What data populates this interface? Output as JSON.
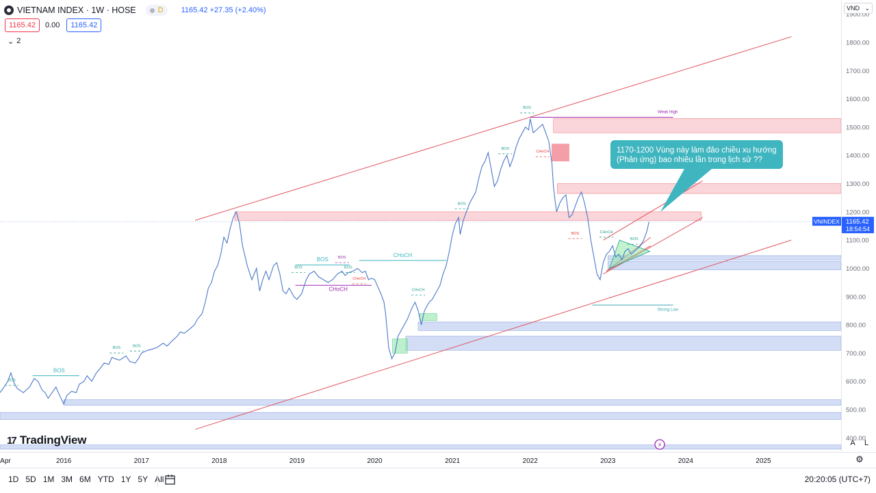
{
  "header": {
    "title": "VIETNAM INDEX · 1W · HOSE",
    "interval_badge": "D",
    "quote": "1165.42  +27.35 (+2.40%)",
    "bid": "1165.42",
    "spread": "0.00",
    "ask": "1165.42",
    "indicators_count": "2"
  },
  "currency": "VND",
  "brand": "TradingView",
  "scale_buttons": {
    "auto": "A",
    "log": "L"
  },
  "time_ranges": [
    "1D",
    "5D",
    "1M",
    "3M",
    "6M",
    "YTD",
    "1Y",
    "5Y",
    "All"
  ],
  "clock": "20:20:05 (UTC+7)",
  "colors": {
    "line": "#4a78c8",
    "zone_red": "#f5b5bb",
    "zone_blue": "#aec1ec",
    "zone_green": "#87e5a4",
    "channel": "#e0555f",
    "callout": "#3fb5bf"
  },
  "chart_data": {
    "type": "line",
    "symbol": "VNINDEX",
    "last_value": 1165.42,
    "last_label": "1165.42",
    "countdown": "18:54:54",
    "ylim": [
      350,
      1950
    ],
    "y_ticks": [
      400,
      500,
      600,
      700,
      800,
      900,
      1000,
      1100,
      1200,
      1300,
      1400,
      1500,
      1600,
      1700,
      1800,
      1900
    ],
    "y_tick_labels": [
      "400.00",
      "500.00",
      "600.00",
      "700.00",
      "800.00",
      "900.00",
      "1000.00",
      "1100.00",
      "1200.00",
      "1300.00",
      "1400.00",
      "1500.00",
      "1600.00",
      "1700.00",
      "1800.00",
      "1900.00"
    ],
    "x_ticks": [
      {
        "label": "Apr",
        "t": 2015.25
      },
      {
        "label": "2016",
        "t": 2016.0
      },
      {
        "label": "2017",
        "t": 2017.0
      },
      {
        "label": "2018",
        "t": 2018.0
      },
      {
        "label": "2019",
        "t": 2019.0
      },
      {
        "label": "2020",
        "t": 2020.0
      },
      {
        "label": "2021",
        "t": 2021.0
      },
      {
        "label": "2022",
        "t": 2022.0
      },
      {
        "label": "2023",
        "t": 2023.0
      },
      {
        "label": "2024",
        "t": 2024.0
      },
      {
        "label": "2025",
        "t": 2025.0
      }
    ],
    "xlim": [
      2015.18,
      2026.0
    ],
    "points": [
      [
        2015.18,
        560
      ],
      [
        2015.22,
        575
      ],
      [
        2015.28,
        600
      ],
      [
        2015.32,
        630
      ],
      [
        2015.36,
        595
      ],
      [
        2015.4,
        575
      ],
      [
        2015.48,
        560
      ],
      [
        2015.56,
        580
      ],
      [
        2015.62,
        610
      ],
      [
        2015.67,
        600
      ],
      [
        2015.72,
        570
      ],
      [
        2015.76,
        560
      ],
      [
        2015.8,
        540
      ],
      [
        2015.85,
        560
      ],
      [
        2015.9,
        580
      ],
      [
        2015.93,
        560
      ],
      [
        2016.0,
        520
      ],
      [
        2016.04,
        550
      ],
      [
        2016.1,
        565
      ],
      [
        2016.16,
        560
      ],
      [
        2016.2,
        590
      ],
      [
        2016.26,
        600
      ],
      [
        2016.3,
        620
      ],
      [
        2016.36,
        600
      ],
      [
        2016.42,
        630
      ],
      [
        2016.48,
        650
      ],
      [
        2016.52,
        665
      ],
      [
        2016.58,
        660
      ],
      [
        2016.62,
        685
      ],
      [
        2016.66,
        680
      ],
      [
        2016.72,
        675
      ],
      [
        2016.8,
        690
      ],
      [
        2016.85,
        670
      ],
      [
        2016.92,
        665
      ],
      [
        2016.96,
        680
      ],
      [
        2017.0,
        700
      ],
      [
        2017.08,
        710
      ],
      [
        2017.15,
        715
      ],
      [
        2017.2,
        720
      ],
      [
        2017.28,
        735
      ],
      [
        2017.33,
        725
      ],
      [
        2017.4,
        745
      ],
      [
        2017.46,
        760
      ],
      [
        2017.5,
        775
      ],
      [
        2017.55,
        770
      ],
      [
        2017.62,
        785
      ],
      [
        2017.68,
        800
      ],
      [
        2017.72,
        820
      ],
      [
        2017.78,
        840
      ],
      [
        2017.82,
        880
      ],
      [
        2017.86,
        930
      ],
      [
        2017.9,
        950
      ],
      [
        2017.94,
        990
      ],
      [
        2017.98,
        1010
      ],
      [
        2018.02,
        1050
      ],
      [
        2018.06,
        1110
      ],
      [
        2018.1,
        1090
      ],
      [
        2018.14,
        1140
      ],
      [
        2018.18,
        1180
      ],
      [
        2018.22,
        1200
      ],
      [
        2018.26,
        1160
      ],
      [
        2018.3,
        1080
      ],
      [
        2018.36,
        1010
      ],
      [
        2018.42,
        960
      ],
      [
        2018.48,
        1000
      ],
      [
        2018.52,
        920
      ],
      [
        2018.56,
        960
      ],
      [
        2018.6,
        990
      ],
      [
        2018.64,
        960
      ],
      [
        2018.7,
        1010
      ],
      [
        2018.74,
        1020
      ],
      [
        2018.78,
        980
      ],
      [
        2018.82,
        920
      ],
      [
        2018.86,
        910
      ],
      [
        2018.9,
        930
      ],
      [
        2018.96,
        900
      ],
      [
        2019.0,
        890
      ],
      [
        2019.06,
        910
      ],
      [
        2019.12,
        960
      ],
      [
        2019.16,
        980
      ],
      [
        2019.22,
        990
      ],
      [
        2019.28,
        970
      ],
      [
        2019.34,
        960
      ],
      [
        2019.4,
        950
      ],
      [
        2019.46,
        960
      ],
      [
        2019.52,
        980
      ],
      [
        2019.58,
        990
      ],
      [
        2019.62,
        975
      ],
      [
        2019.66,
        985
      ],
      [
        2019.72,
        990
      ],
      [
        2019.78,
        1000
      ],
      [
        2019.84,
        985
      ],
      [
        2019.88,
        990
      ],
      [
        2019.92,
        960
      ],
      [
        2019.96,
        965
      ],
      [
        2020.0,
        960
      ],
      [
        2020.04,
        935
      ],
      [
        2020.08,
        910
      ],
      [
        2020.12,
        880
      ],
      [
        2020.14,
        840
      ],
      [
        2020.16,
        780
      ],
      [
        2020.18,
        720
      ],
      [
        2020.22,
        680
      ],
      [
        2020.26,
        700
      ],
      [
        2020.3,
        760
      ],
      [
        2020.36,
        790
      ],
      [
        2020.42,
        820
      ],
      [
        2020.48,
        860
      ],
      [
        2020.52,
        880
      ],
      [
        2020.56,
        850
      ],
      [
        2020.6,
        800
      ],
      [
        2020.64,
        850
      ],
      [
        2020.7,
        880
      ],
      [
        2020.74,
        890
      ],
      [
        2020.8,
        920
      ],
      [
        2020.84,
        940
      ],
      [
        2020.88,
        980
      ],
      [
        2020.92,
        1010
      ],
      [
        2020.96,
        1060
      ],
      [
        2021.0,
        1120
      ],
      [
        2021.04,
        1160
      ],
      [
        2021.08,
        1180
      ],
      [
        2021.1,
        1120
      ],
      [
        2021.14,
        1170
      ],
      [
        2021.18,
        1200
      ],
      [
        2021.22,
        1230
      ],
      [
        2021.26,
        1250
      ],
      [
        2021.3,
        1270
      ],
      [
        2021.34,
        1320
      ],
      [
        2021.38,
        1360
      ],
      [
        2021.42,
        1380
      ],
      [
        2021.46,
        1410
      ],
      [
        2021.5,
        1350
      ],
      [
        2021.54,
        1290
      ],
      [
        2021.58,
        1310
      ],
      [
        2021.62,
        1350
      ],
      [
        2021.66,
        1380
      ],
      [
        2021.7,
        1400
      ],
      [
        2021.74,
        1360
      ],
      [
        2021.78,
        1390
      ],
      [
        2021.82,
        1430
      ],
      [
        2021.86,
        1460
      ],
      [
        2021.9,
        1480
      ],
      [
        2021.94,
        1500
      ],
      [
        2021.98,
        1490
      ],
      [
        2022.0,
        1530
      ],
      [
        2022.04,
        1480
      ],
      [
        2022.08,
        1490
      ],
      [
        2022.12,
        1500
      ],
      [
        2022.16,
        1510
      ],
      [
        2022.2,
        1480
      ],
      [
        2022.24,
        1450
      ],
      [
        2022.28,
        1370
      ],
      [
        2022.3,
        1290
      ],
      [
        2022.32,
        1240
      ],
      [
        2022.34,
        1200
      ],
      [
        2022.38,
        1230
      ],
      [
        2022.42,
        1250
      ],
      [
        2022.46,
        1260
      ],
      [
        2022.5,
        1180
      ],
      [
        2022.54,
        1190
      ],
      [
        2022.58,
        1220
      ],
      [
        2022.62,
        1250
      ],
      [
        2022.66,
        1270
      ],
      [
        2022.7,
        1230
      ],
      [
        2022.74,
        1180
      ],
      [
        2022.78,
        1100
      ],
      [
        2022.82,
        1040
      ],
      [
        2022.86,
        980
      ],
      [
        2022.9,
        960
      ],
      [
        2022.94,
        1020
      ],
      [
        2022.98,
        1050
      ],
      [
        2023.02,
        1060
      ],
      [
        2023.06,
        1080
      ],
      [
        2023.1,
        1040
      ],
      [
        2023.14,
        1050
      ],
      [
        2023.18,
        1030
      ],
      [
        2023.22,
        1060
      ],
      [
        2023.26,
        1070
      ],
      [
        2023.3,
        1050
      ],
      [
        2023.34,
        1060
      ],
      [
        2023.38,
        1070
      ],
      [
        2023.42,
        1080
      ],
      [
        2023.46,
        1100
      ],
      [
        2023.5,
        1130
      ],
      [
        2023.53,
        1165
      ]
    ],
    "zones": [
      {
        "color": "red",
        "t0": 2018.2,
        "t1": 2024.2,
        "y0": 1170,
        "y1": 1200
      },
      {
        "color": "red",
        "t0": 2022.35,
        "t1": 2026.0,
        "y0": 1265,
        "y1": 1300
      },
      {
        "color": "red",
        "t0": 2022.3,
        "t1": 2026.0,
        "y0": 1480,
        "y1": 1530
      },
      {
        "color": "redstrong",
        "t0": 2022.28,
        "t1": 2022.5,
        "y0": 1380,
        "y1": 1440
      },
      {
        "color": "blue",
        "t0": 2023.0,
        "t1": 2026.0,
        "y0": 1030,
        "y1": 1045
      },
      {
        "color": "blue",
        "t0": 2023.0,
        "t1": 2026.0,
        "y0": 995,
        "y1": 1025
      },
      {
        "color": "blue",
        "t0": 2020.56,
        "t1": 2026.0,
        "y0": 780,
        "y1": 810
      },
      {
        "color": "blue",
        "t0": 2020.4,
        "t1": 2026.0,
        "y0": 710,
        "y1": 760
      },
      {
        "color": "blue",
        "t0": 2016.0,
        "t1": 2026.0,
        "y0": 515,
        "y1": 535
      },
      {
        "color": "blue",
        "t0": 2015.18,
        "t1": 2026.0,
        "y0": 465,
        "y1": 490
      },
      {
        "color": "blue",
        "t0": 2015.18,
        "t1": 2026.0,
        "y0": 360,
        "y1": 375
      },
      {
        "color": "green",
        "t0": 2020.23,
        "t1": 2020.42,
        "y0": 700,
        "y1": 750
      },
      {
        "color": "green",
        "t0": 2020.58,
        "t1": 2020.8,
        "y0": 815,
        "y1": 840
      }
    ],
    "trendlines": [
      {
        "t0": 2017.69,
        "y0": 1170,
        "t1": 2025.36,
        "y1": 1820
      },
      {
        "t0": 2017.69,
        "y0": 430,
        "t1": 2025.36,
        "y1": 1100
      },
      {
        "t0": 2022.94,
        "y0": 1100,
        "t1": 2024.22,
        "y1": 1310
      },
      {
        "t0": 2022.94,
        "y0": 980,
        "t1": 2024.22,
        "y1": 1180
      },
      {
        "t0": 2022.98,
        "y0": 990,
        "t1": 2023.55,
        "y1": 1110
      },
      {
        "t0": 2022.98,
        "y0": 990,
        "t1": 2023.55,
        "y1": 1080
      }
    ],
    "hlines": [
      {
        "t0": 2022.0,
        "t1": 2023.84,
        "y": 1535,
        "color": "#9c27b0",
        "label": "Weak High",
        "lx": 2023.77,
        "ly": 1550
      },
      {
        "t0": 2022.8,
        "t1": 2023.84,
        "y": 870,
        "color": "#3fa7b5",
        "label": "Strong Low",
        "lx": 2023.77,
        "ly": 850
      },
      {
        "t0": 2015.6,
        "t1": 2016.2,
        "y": 620,
        "color": "#3fb5bf",
        "label": "BOS",
        "lx": 2015.94,
        "ly": 632
      },
      {
        "t0": 2018.98,
        "t1": 2019.68,
        "y": 1012,
        "color": "#3fb5bf",
        "label": "BOS",
        "lx": 2019.33,
        "ly": 1025
      },
      {
        "t0": 2019.8,
        "t1": 2020.92,
        "y": 1028,
        "color": "#3fb5bf",
        "label": "CHoCH",
        "lx": 2020.36,
        "ly": 1040
      },
      {
        "t0": 2018.98,
        "t1": 2019.96,
        "y": 940,
        "color": "#9c27b0",
        "label": "CHoCH",
        "lx": 2019.53,
        "ly": 920
      }
    ],
    "small_labels": [
      {
        "text": "BOS",
        "t": 2015.33,
        "y": 600,
        "color": "#1e9e8c"
      },
      {
        "text": "BOS",
        "t": 2016.68,
        "y": 715,
        "color": "#1e9e8c"
      },
      {
        "text": "BOS",
        "t": 2016.94,
        "y": 722,
        "color": "#1e9e8c"
      },
      {
        "text": "BOS",
        "t": 2019.02,
        "y": 1000,
        "color": "#1e9e8c"
      },
      {
        "text": "BOS",
        "t": 2019.66,
        "y": 1000,
        "color": "#1e9e8c"
      },
      {
        "text": "BOS",
        "t": 2019.58,
        "y": 1035,
        "color": "#9c27b0"
      },
      {
        "text": "CHoCH",
        "t": 2019.8,
        "y": 960,
        "color": "#e53935"
      },
      {
        "text": "CHoCH",
        "t": 2020.56,
        "y": 920,
        "color": "#1e9e8c"
      },
      {
        "text": "BOS",
        "t": 2021.12,
        "y": 1225,
        "color": "#1e9e8c"
      },
      {
        "text": "BOS",
        "t": 2021.68,
        "y": 1420,
        "color": "#1e9e8c"
      },
      {
        "text": "BOS",
        "t": 2021.96,
        "y": 1565,
        "color": "#1e9e8c"
      },
      {
        "text": "CHoCH",
        "t": 2022.16,
        "y": 1410,
        "color": "#e53935"
      },
      {
        "text": "BOS",
        "t": 2022.58,
        "y": 1120,
        "color": "#e53935"
      },
      {
        "text": "CHoCH",
        "t": 2022.98,
        "y": 1125,
        "color": "#1e9e8c"
      },
      {
        "text": "BOS",
        "t": 2023.34,
        "y": 1100,
        "color": "#1e9e8c"
      }
    ],
    "annotation": {
      "text_line1": "1170-1200 Vùng này làm đảo chiều xu hướng",
      "text_line2": "(Phản ứng) bao nhiêu lần trong lịch sử ??"
    }
  }
}
